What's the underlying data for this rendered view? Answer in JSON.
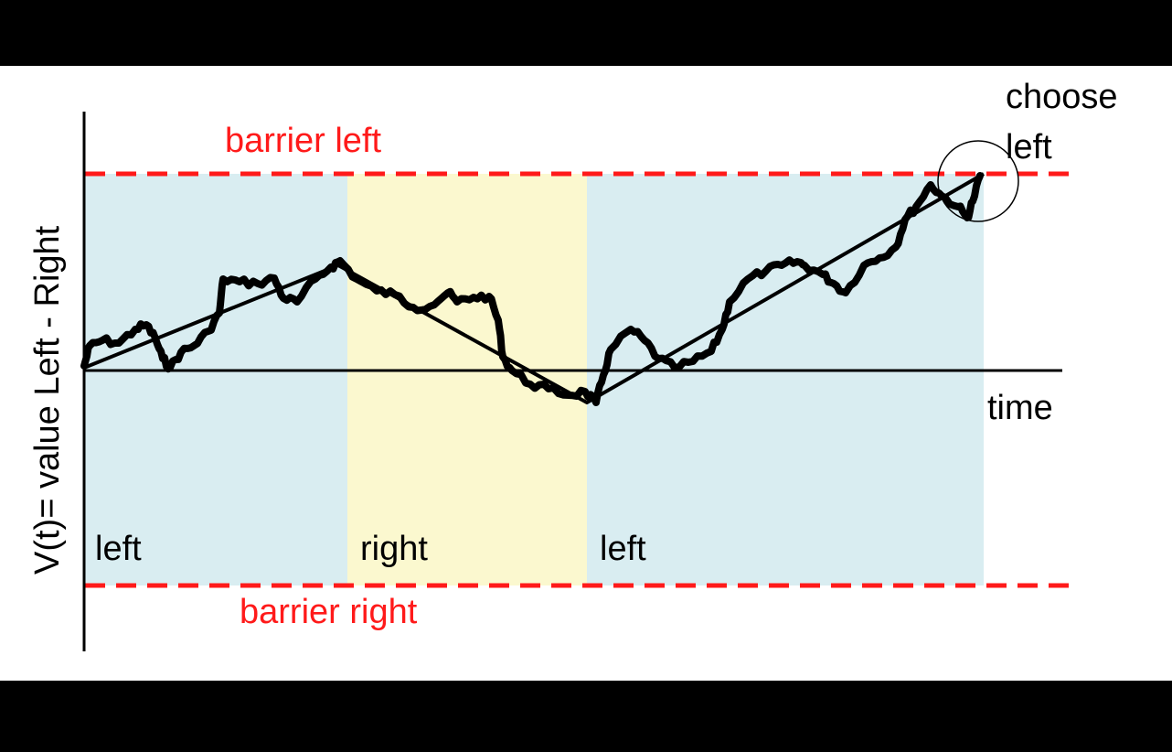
{
  "labels": {
    "barrier_left": "barrier left",
    "barrier_right": "barrier right",
    "choose_line1": "choose",
    "choose_line2": "left",
    "time": "time",
    "y_axis": "V(t)= value Left - Right",
    "region_1": "left",
    "region_2": "right",
    "region_3": "left"
  },
  "colors": {
    "barrier": "#ff1a1a",
    "region_left": "#d9edf1",
    "region_right": "#fbf8cf",
    "ink": "#000000"
  }
}
